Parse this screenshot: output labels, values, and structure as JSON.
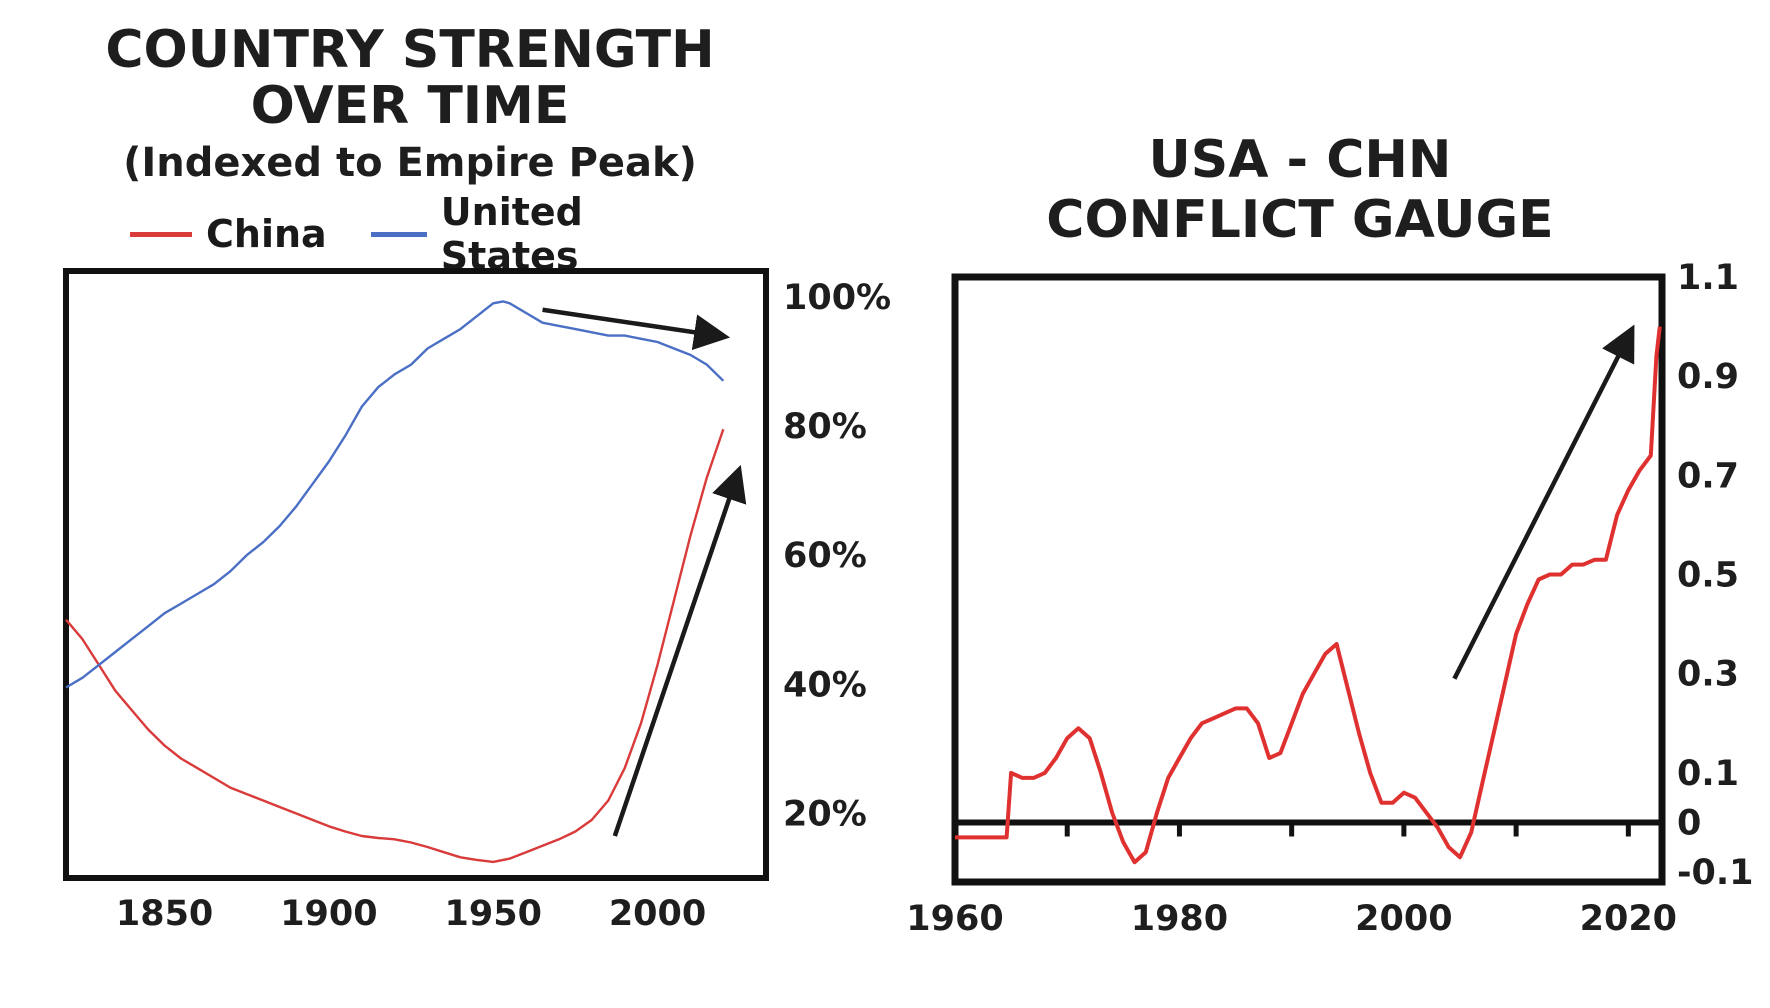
{
  "chart_data": [
    {
      "type": "line",
      "title": "COUNTRY STRENGTH",
      "title_line2": "OVER TIME",
      "subtitle": "(Indexed to Empire Peak)",
      "xlim": [
        1820,
        2033
      ],
      "ylim": [
        10,
        104
      ],
      "x_ticks": [
        1850,
        1900,
        1950,
        2000
      ],
      "y_ticks": [
        20,
        40,
        60,
        80,
        100
      ],
      "y_tick_labels": [
        "20%",
        "40%",
        "60%",
        "80%",
        "100%"
      ],
      "y_axis_side": "right",
      "grid": false,
      "legend_position": "top",
      "series": [
        {
          "name": "China",
          "color": "#d93a3a",
          "x": [
            1820,
            1825,
            1830,
            1835,
            1840,
            1845,
            1850,
            1855,
            1860,
            1865,
            1870,
            1875,
            1880,
            1885,
            1890,
            1895,
            1900,
            1905,
            1910,
            1915,
            1920,
            1925,
            1930,
            1935,
            1940,
            1945,
            1950,
            1955,
            1960,
            1965,
            1970,
            1975,
            1980,
            1985,
            1990,
            1995,
            2000,
            2005,
            2010,
            2015,
            2020
          ],
          "y": [
            50,
            47,
            43,
            39,
            36,
            33,
            30.5,
            28.5,
            27,
            25.5,
            24,
            23,
            22,
            21,
            20,
            19,
            18,
            17.2,
            16.5,
            16.2,
            16,
            15.5,
            14.8,
            14,
            13.2,
            12.8,
            12.5,
            13,
            14,
            15,
            16,
            17.2,
            19,
            22,
            27,
            34,
            43,
            53,
            63,
            72,
            79.5
          ]
        },
        {
          "name": "United States",
          "color": "#4a6fc4",
          "x": [
            1820,
            1825,
            1830,
            1835,
            1840,
            1845,
            1850,
            1855,
            1860,
            1865,
            1870,
            1875,
            1880,
            1885,
            1890,
            1895,
            1900,
            1905,
            1910,
            1915,
            1920,
            1925,
            1930,
            1935,
            1940,
            1945,
            1950,
            1953,
            1955,
            1960,
            1965,
            1970,
            1975,
            1980,
            1985,
            1990,
            1995,
            2000,
            2005,
            2010,
            2015,
            2020
          ],
          "y": [
            39.5,
            41,
            43,
            45,
            47,
            49,
            51,
            52.5,
            54,
            55.5,
            57.5,
            60,
            62,
            64.5,
            67.5,
            71,
            74.5,
            78.5,
            83,
            86,
            88,
            89.5,
            92,
            93.5,
            95,
            97,
            99,
            99.3,
            99,
            97.5,
            96,
            95.5,
            95,
            94.5,
            94,
            94,
            93.5,
            93,
            92,
            91,
            89.5,
            87
          ]
        }
      ],
      "annotations": [
        {
          "type": "arrow",
          "from": [
            1965,
            98
          ],
          "to": [
            2018,
            94
          ]
        },
        {
          "type": "arrow",
          "from": [
            1987,
            16.5
          ],
          "to": [
            2024,
            72
          ]
        }
      ]
    },
    {
      "type": "line",
      "title": "USA - CHN",
      "title_line2": "CONFLICT GAUGE",
      "xlim": [
        1960,
        2023
      ],
      "ylim": [
        -0.12,
        1.1
      ],
      "x_ticks": [
        1960,
        1980,
        2000,
        2020
      ],
      "minor_x_ticks": [
        1970,
        1980,
        1990,
        2000,
        2010,
        2020
      ],
      "y_ticks": [
        -0.1,
        0,
        0.1,
        0.3,
        0.5,
        0.7,
        0.9,
        1.1
      ],
      "y_tick_labels": [
        "-0.1",
        "0",
        "0.1",
        "0.3",
        "0.5",
        "0.7",
        "0.9",
        "1.1"
      ],
      "y_axis_side": "right",
      "zero_line": true,
      "grid": false,
      "series": [
        {
          "color": "#e03131",
          "x": [
            1960,
            1961,
            1962,
            1963,
            1964,
            1964.6,
            1965,
            1966,
            1967,
            1968,
            1969,
            1970,
            1971,
            1972,
            1973,
            1974,
            1975,
            1976,
            1977,
            1978,
            1979,
            1980,
            1981,
            1982,
            1983,
            1984,
            1985,
            1986,
            1987,
            1988,
            1989,
            1990,
            1991,
            1992,
            1993,
            1994,
            1995,
            1996,
            1997,
            1998,
            1999,
            2000,
            2001,
            2002,
            2003,
            2004,
            2005,
            2006,
            2007,
            2008,
            2009,
            2010,
            2011,
            2012,
            2013,
            2014,
            2015,
            2016,
            2017,
            2018,
            2019,
            2020,
            2021,
            2022,
            2022.5,
            2022.8
          ],
          "y": [
            -0.03,
            -0.03,
            -0.03,
            -0.03,
            -0.03,
            -0.03,
            0.1,
            0.09,
            0.09,
            0.1,
            0.13,
            0.17,
            0.19,
            0.17,
            0.1,
            0.02,
            -0.04,
            -0.08,
            -0.06,
            0.02,
            0.09,
            0.13,
            0.17,
            0.2,
            0.21,
            0.22,
            0.23,
            0.23,
            0.2,
            0.13,
            0.14,
            0.2,
            0.26,
            0.3,
            0.34,
            0.36,
            0.27,
            0.18,
            0.1,
            0.04,
            0.04,
            0.06,
            0.05,
            0.02,
            -0.01,
            -0.05,
            -0.07,
            -0.02,
            0.08,
            0.18,
            0.28,
            0.38,
            0.44,
            0.49,
            0.5,
            0.5,
            0.52,
            0.52,
            0.53,
            0.53,
            0.62,
            0.67,
            0.71,
            0.74,
            0.94,
            1.0
          ]
        }
      ],
      "annotations": [
        {
          "type": "arrow",
          "from": [
            2004.5,
            0.29
          ],
          "to": [
            2020,
            0.98
          ]
        }
      ]
    }
  ]
}
